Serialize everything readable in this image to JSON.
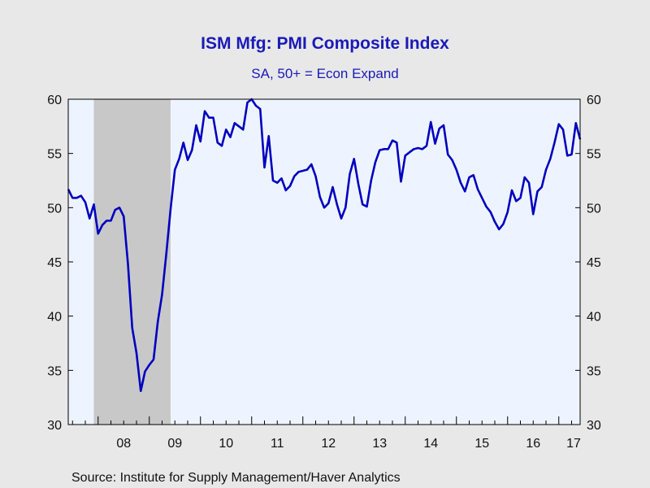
{
  "chart_data": {
    "type": "line",
    "title": "ISM Mfg: PMI Composite Index",
    "subtitle": "SA, 50+ = Econ Expand",
    "source": "Source:  Institute for Supply Management/Haver Analytics",
    "ylim": [
      30,
      60
    ],
    "yticks": [
      30,
      35,
      40,
      45,
      50,
      55,
      60
    ],
    "ytick_labels": [
      "30",
      "35",
      "40",
      "45",
      "50",
      "55",
      "60"
    ],
    "x_start": [
      2007,
      6
    ],
    "x_end": [
      2017,
      6
    ],
    "xtick_labels": [
      {
        "label": "08",
        "year": 2008
      },
      {
        "label": "09",
        "year": 2009
      },
      {
        "label": "10",
        "year": 2010
      },
      {
        "label": "11",
        "year": 2011
      },
      {
        "label": "12",
        "year": 2012
      },
      {
        "label": "13",
        "year": 2013
      },
      {
        "label": "14",
        "year": 2014
      },
      {
        "label": "15",
        "year": 2015
      },
      {
        "label": "16",
        "year": 2016
      },
      {
        "label": "17",
        "year": 2017
      }
    ],
    "recession": {
      "start": [
        2007,
        12
      ],
      "end": [
        2009,
        6
      ],
      "color": "#c8c8c8"
    },
    "grid": false,
    "plot_background": "#eef4ff",
    "series": [
      {
        "color": "#0000c0",
        "start": [
          2007,
          6
        ],
        "values": [
          51.7,
          50.9,
          50.9,
          51.1,
          50.5,
          49.0,
          50.3,
          47.6,
          48.4,
          48.8,
          48.8,
          49.8,
          50.0,
          49.2,
          44.8,
          38.9,
          36.6,
          33.1,
          34.9,
          35.5,
          36.0,
          39.5,
          42.0,
          45.8,
          49.9,
          53.5,
          54.5,
          56.0,
          54.4,
          55.3,
          57.6,
          56.1,
          58.9,
          58.3,
          58.3,
          56.0,
          55.7,
          57.2,
          56.5,
          57.8,
          57.5,
          57.2,
          59.7,
          60.0,
          59.4,
          59.1,
          53.7,
          56.6,
          52.5,
          52.3,
          52.7,
          51.6,
          52.0,
          52.9,
          53.3,
          53.4,
          53.5,
          54.0,
          52.9,
          51.0,
          50.0,
          50.4,
          51.9,
          50.3,
          49.0,
          50.0,
          53.1,
          54.5,
          52.2,
          50.3,
          50.1,
          52.5,
          54.2,
          55.3,
          55.4,
          55.4,
          56.2,
          56.0,
          52.4,
          54.8,
          55.1,
          55.4,
          55.5,
          55.4,
          55.7,
          57.9,
          55.9,
          57.3,
          57.6,
          54.9,
          54.4,
          53.5,
          52.3,
          51.5,
          52.8,
          53.0,
          51.7,
          50.9,
          50.1,
          49.6,
          48.7,
          48.0,
          48.5,
          49.6,
          51.6,
          50.6,
          50.9,
          52.8,
          52.3,
          49.4,
          51.5,
          51.9,
          53.5,
          54.5,
          56.0,
          57.7,
          57.2,
          54.8,
          54.9,
          57.8,
          56.3
        ]
      }
    ]
  }
}
